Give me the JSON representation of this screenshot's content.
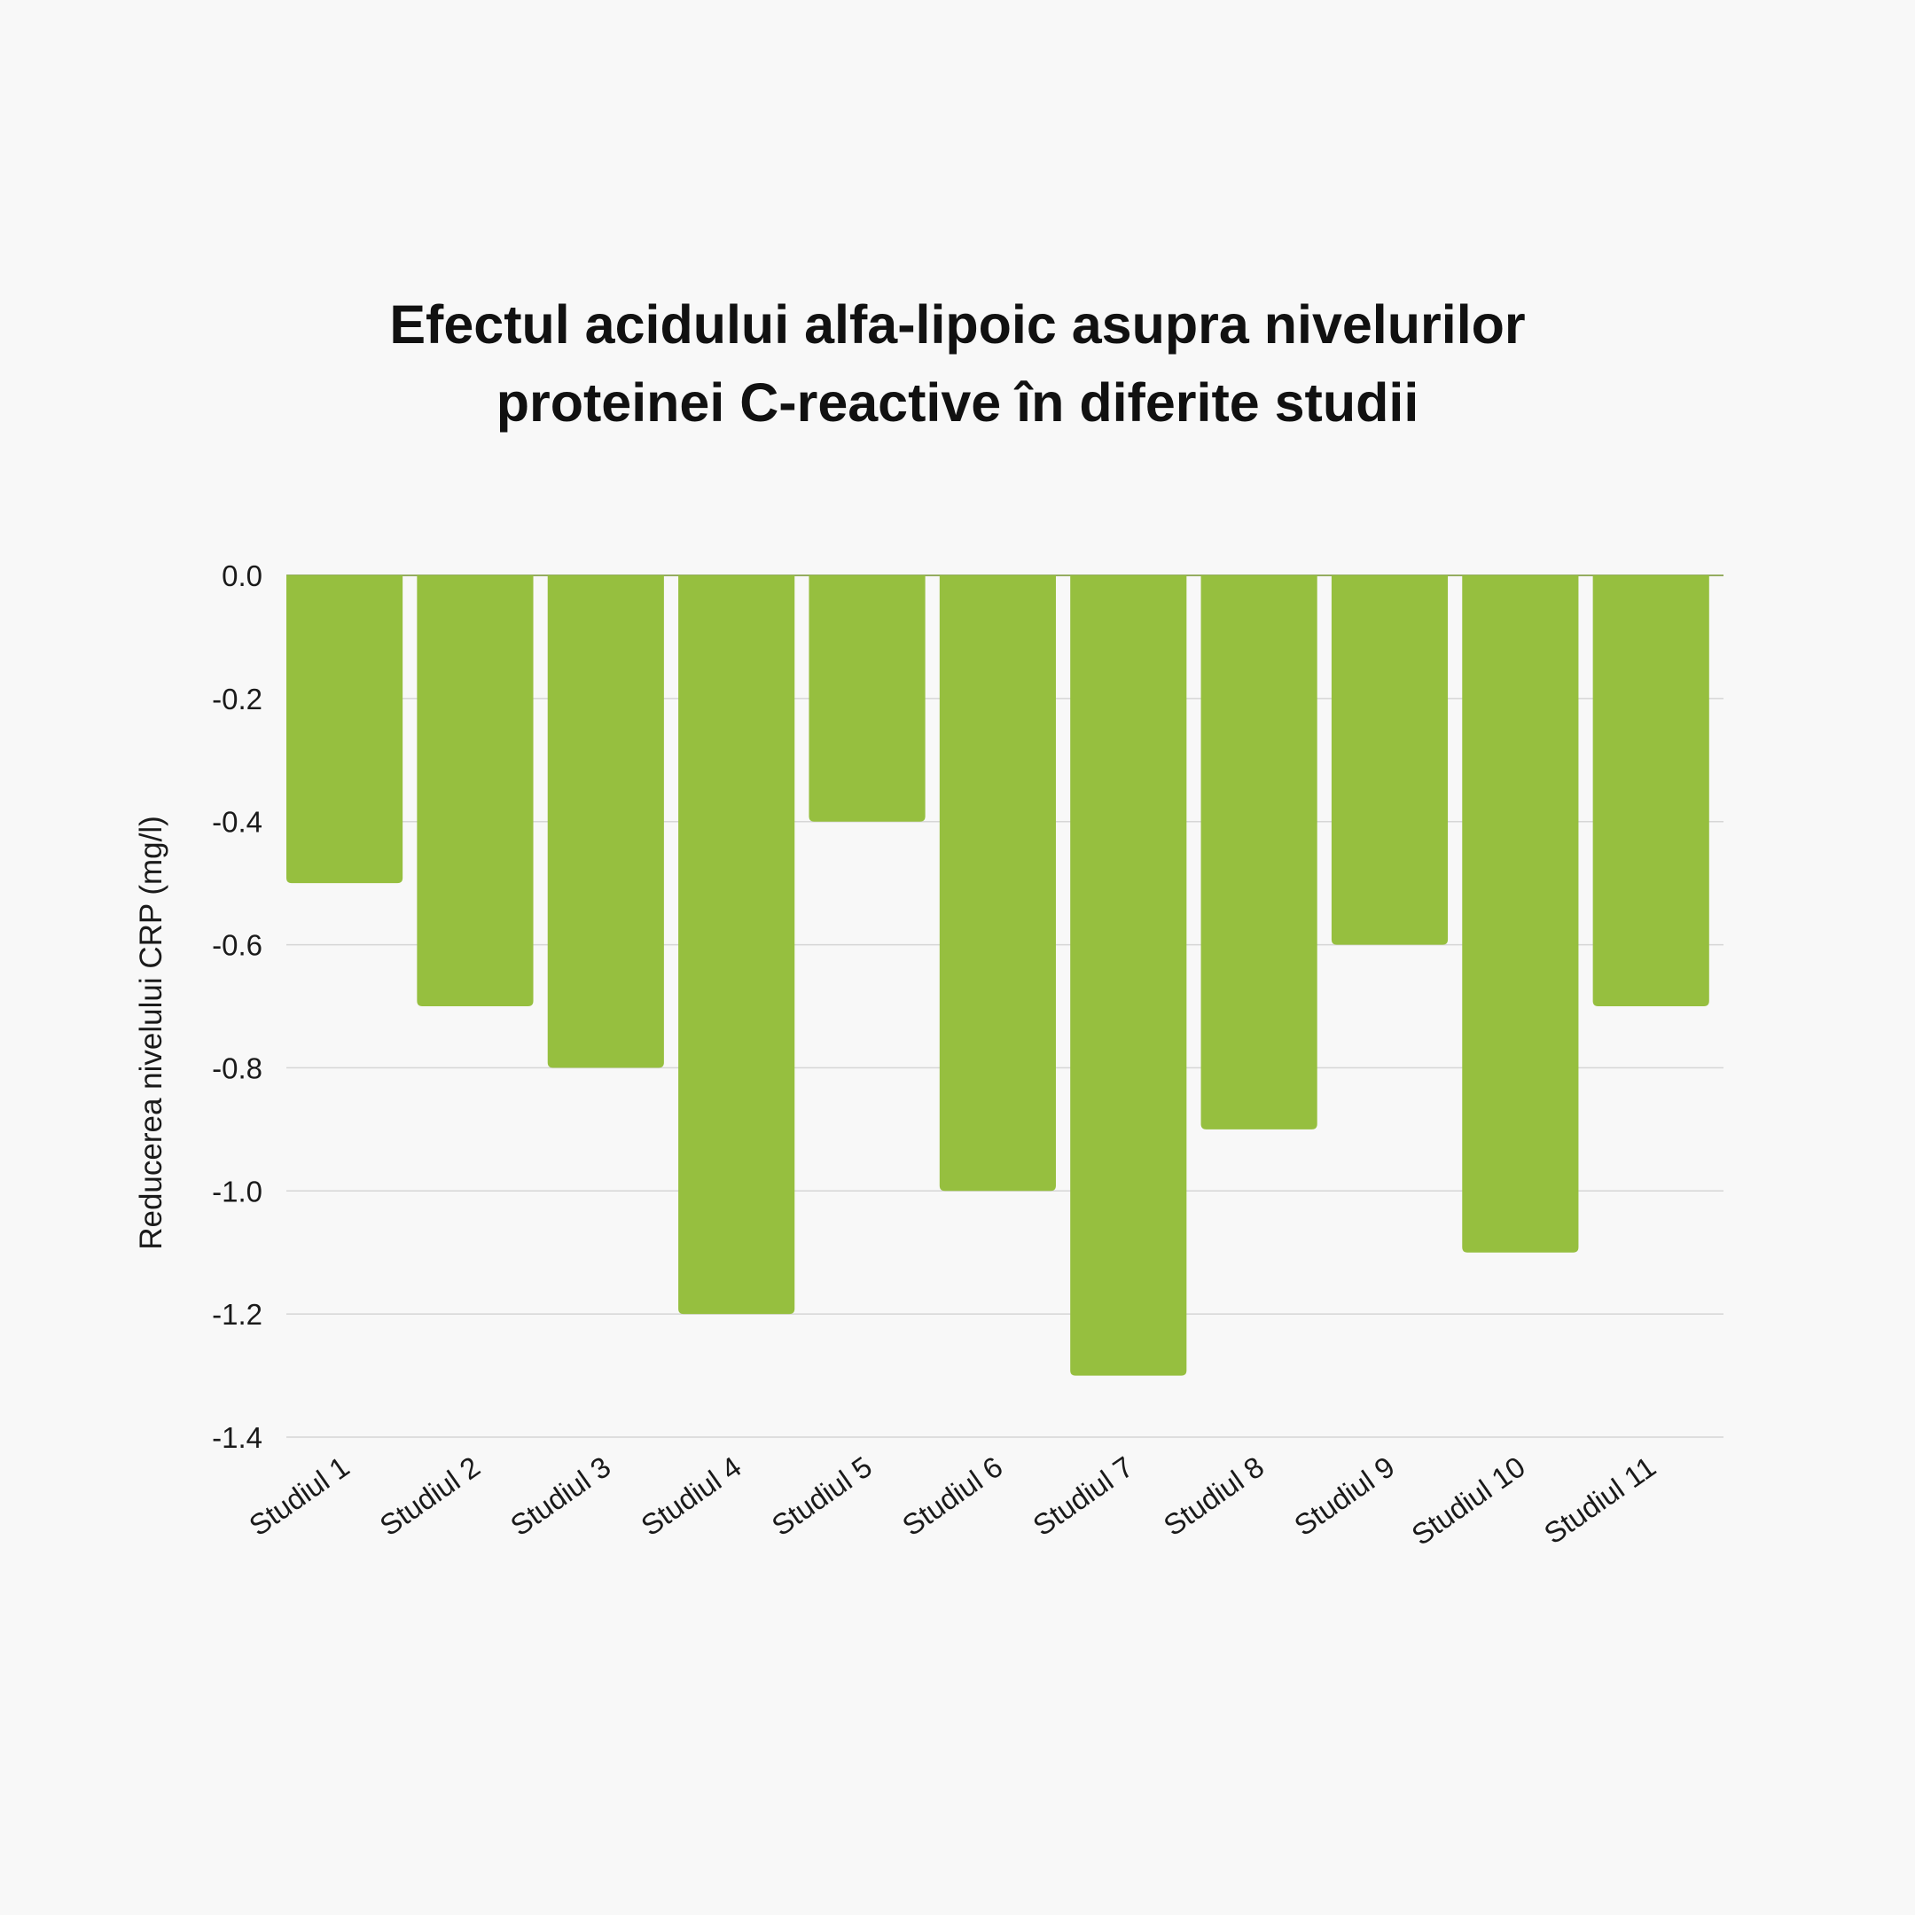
{
  "chart_data": {
    "type": "bar",
    "title_lines": [
      "Efectul acidului alfa-lipoic asupra nivelurilor",
      "proteinei C-reactive în diferite studii"
    ],
    "xlabel": "",
    "ylabel": "Reducerea nivelului CRP (mg/l)",
    "categories": [
      "Studiul 1",
      "Studiul 2",
      "Studiul 3",
      "Studiul 4",
      "Studiul 5",
      "Studiul 6",
      "Studiul 7",
      "Studiul 8",
      "Studiul 9",
      "Studiul 10",
      "Studiul 11"
    ],
    "values": [
      -0.5,
      -0.7,
      -0.8,
      -1.2,
      -0.4,
      -1.0,
      -1.3,
      -0.9,
      -0.6,
      -1.1,
      -0.7
    ],
    "ylim": [
      -1.4,
      0.0
    ],
    "yticks": [
      "0.0",
      "-0.2",
      "-0.4",
      "-0.6",
      "-0.8",
      "-1.0",
      "-1.2",
      "-1.4"
    ],
    "grid": true,
    "legend": "none",
    "colors": {
      "bar": "#96bf3f",
      "grid": "#d6d6d6",
      "background": "#f8f8f8"
    }
  }
}
